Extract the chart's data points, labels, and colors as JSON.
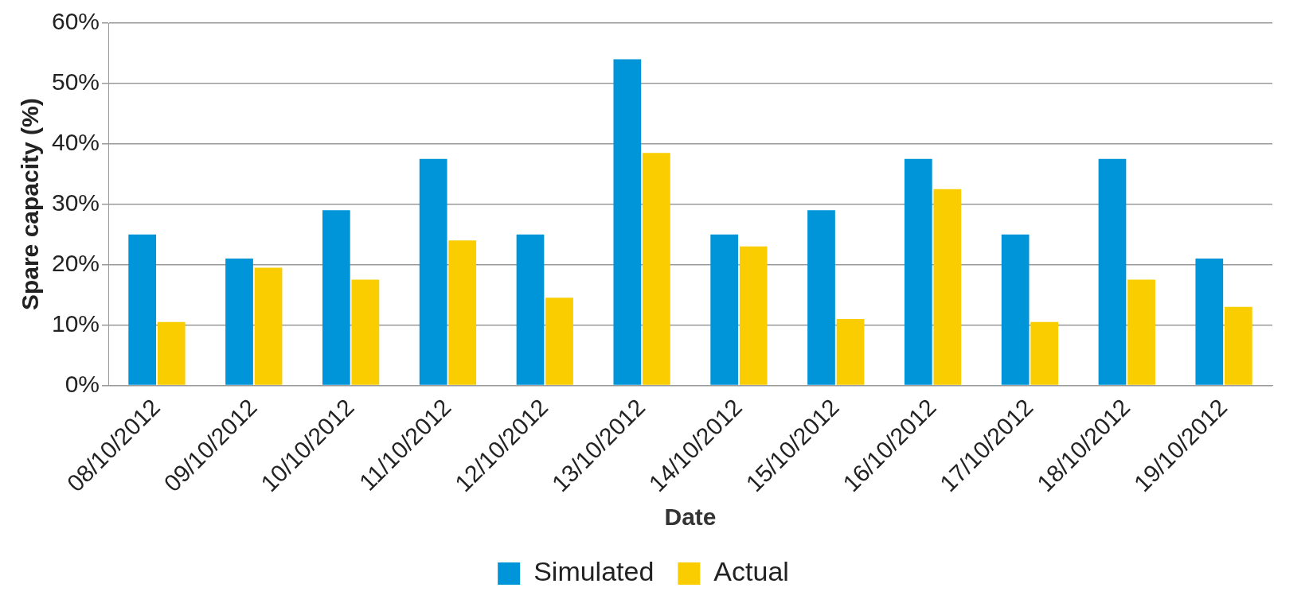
{
  "chart_data": {
    "type": "bar",
    "xlabel": "Date",
    "ylabel": "Spare capacity (%)",
    "categories": [
      "08/10/2012",
      "09/10/2012",
      "10/10/2012",
      "11/10/2012",
      "12/10/2012",
      "13/10/2012",
      "14/10/2012",
      "15/10/2012",
      "16/10/2012",
      "17/10/2012",
      "18/10/2012",
      "19/10/2012"
    ],
    "series": [
      {
        "name": "Simulated",
        "color": "#0094d8",
        "values": [
          25,
          21,
          29,
          37.5,
          25,
          54,
          25,
          29,
          37.5,
          25,
          37.5,
          21
        ]
      },
      {
        "name": "Actual",
        "color": "#f9cd00",
        "values": [
          10.5,
          19.5,
          17.5,
          24,
          14.5,
          38.5,
          23,
          11,
          32.5,
          10.5,
          17.5,
          13
        ]
      }
    ],
    "ylim": [
      0,
      60
    ],
    "yticks": [
      {
        "value": 0,
        "label": "0%"
      },
      {
        "value": 10,
        "label": "10%"
      },
      {
        "value": 20,
        "label": "20%"
      },
      {
        "value": 30,
        "label": "30%"
      },
      {
        "value": 40,
        "label": "40%"
      },
      {
        "value": 50,
        "label": "50%"
      },
      {
        "value": 60,
        "label": "60%"
      }
    ],
    "grid": "y",
    "legend": "bottom"
  }
}
